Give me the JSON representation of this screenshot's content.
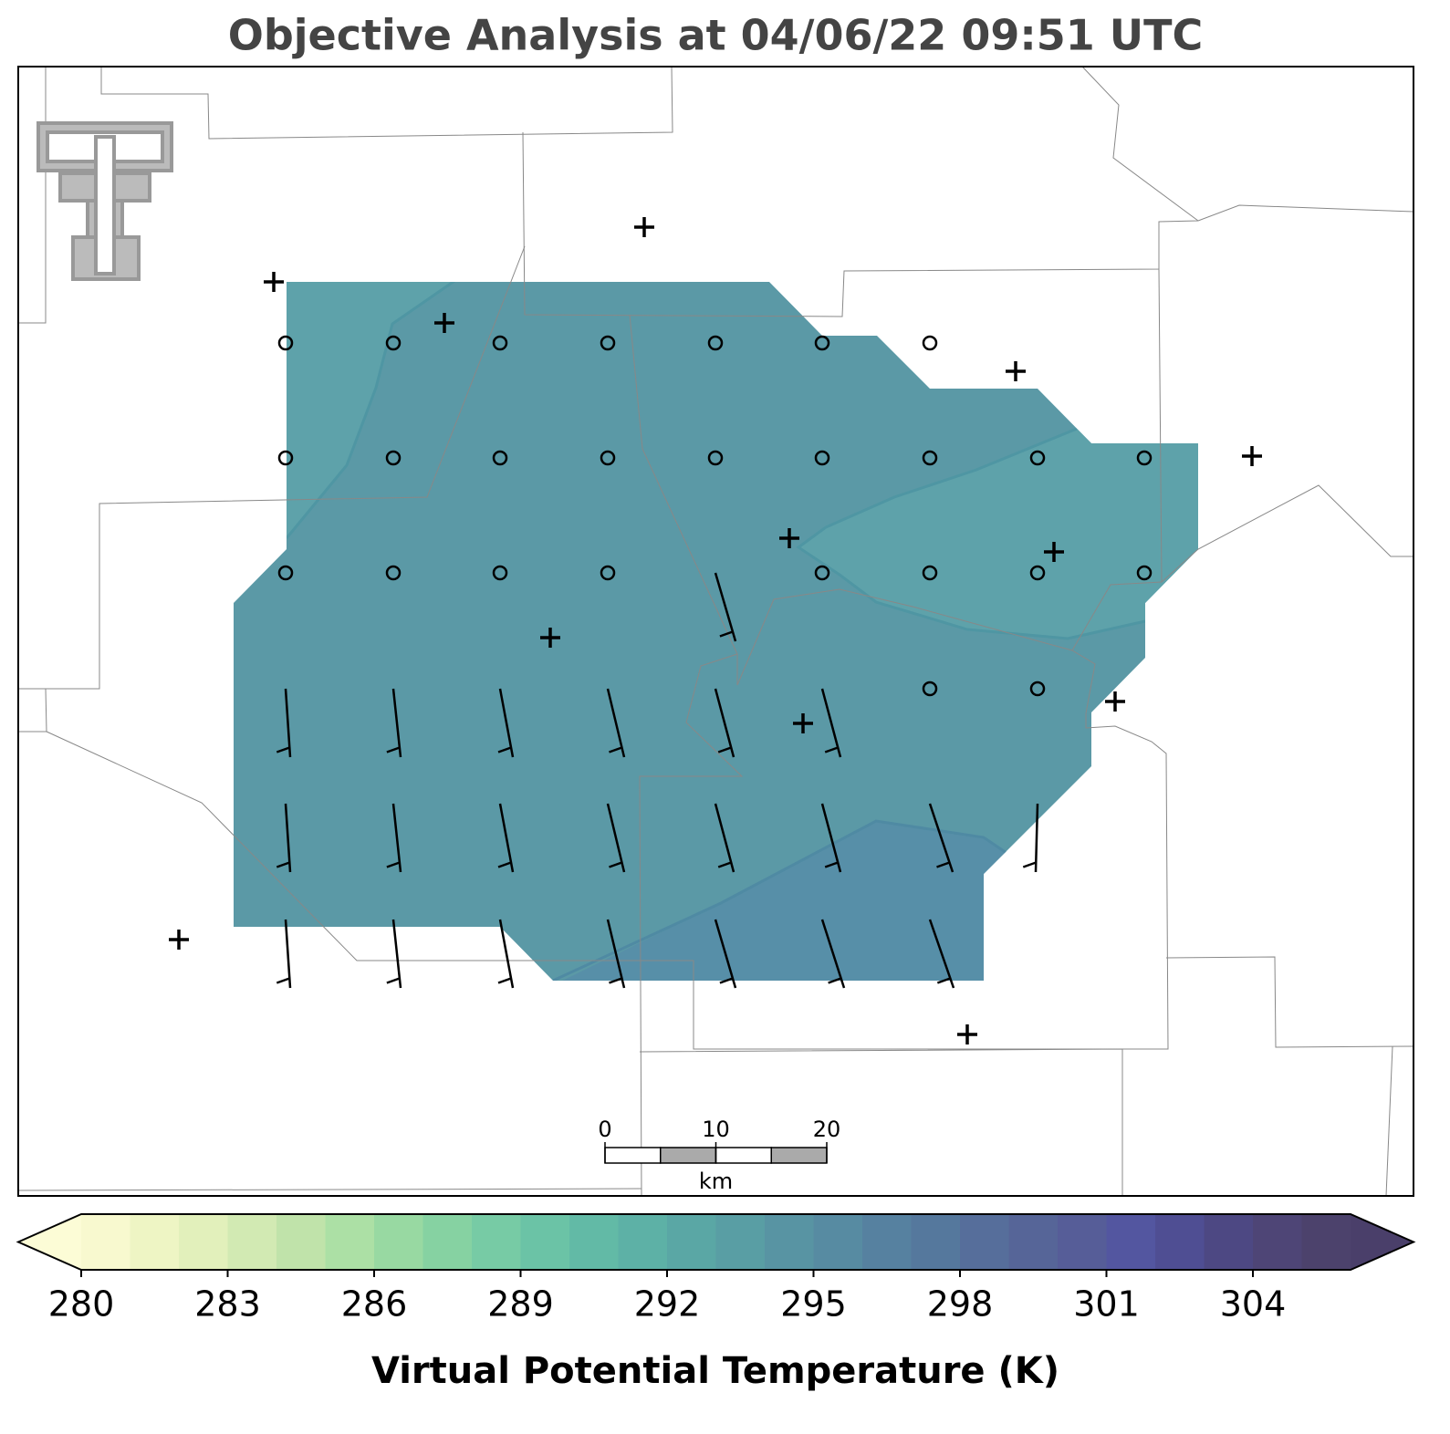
{
  "title": "Objective Analysis at 04/06/22 09:51 UTC",
  "colorbar": {
    "label": "Virtual Potential Temperature (K)",
    "lim": [
      280,
      306
    ],
    "ticks": [
      280,
      283,
      286,
      289,
      292,
      295,
      298,
      301,
      304
    ],
    "colors": [
      "#f8f9cf",
      "#eef5c4",
      "#e2f0bb",
      "#d2eab3",
      "#c0e3aa",
      "#ace0a5",
      "#98d9a2",
      "#86d2a2",
      "#77cba5",
      "#6bc3a6",
      "#62baa6",
      "#5db1a6",
      "#5aa7a5",
      "#599ea4",
      "#5894a3",
      "#578ba2",
      "#5681a0",
      "#55789d",
      "#566e9b",
      "#566598",
      "#565d98",
      "#5356a0",
      "#4f4e93",
      "#4d4883",
      "#4e4576",
      "#4c426c"
    ],
    "under_color": "#fcfcd6",
    "over_color": "#4a3f6a"
  },
  "scale_bar": {
    "ticks": [
      0,
      10,
      20
    ],
    "unit": "km"
  }
}
